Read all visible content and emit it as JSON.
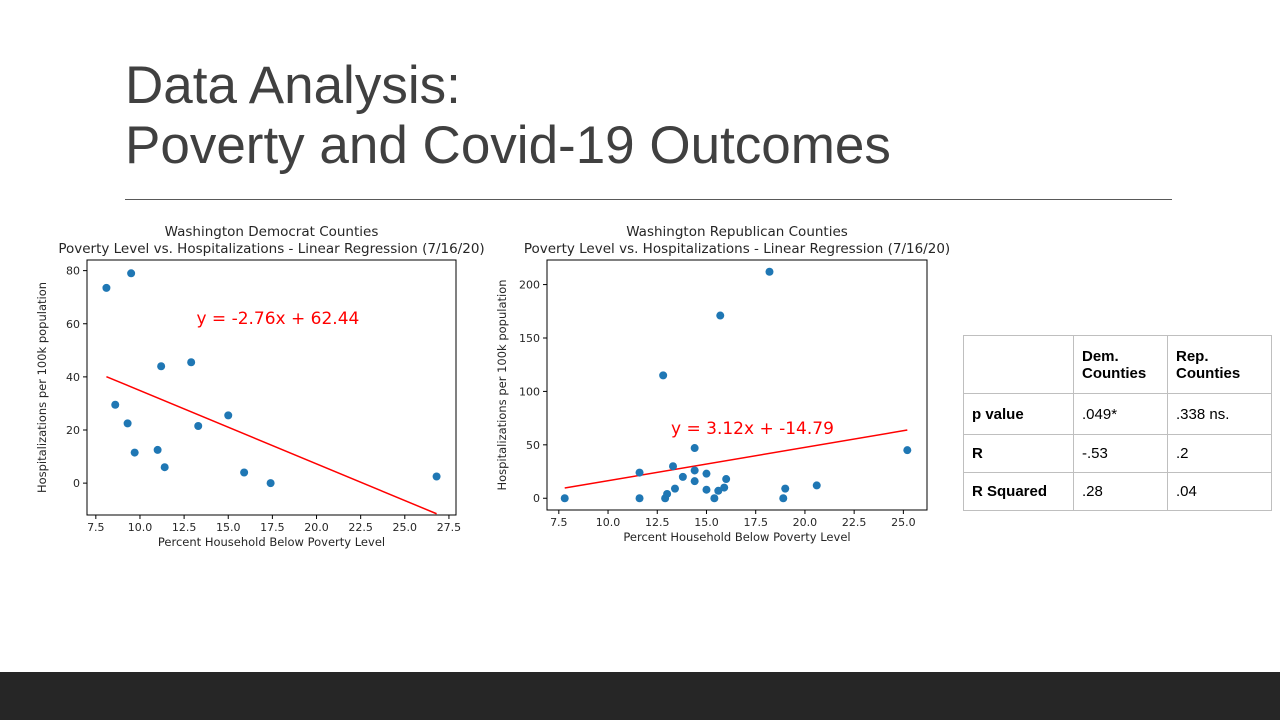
{
  "slide": {
    "title_line1": "Data Analysis:",
    "title_line2": "Poverty and Covid-19 Outcomes"
  },
  "chart_data": [
    {
      "type": "scatter",
      "title": "Washington Democrat Counties",
      "subtitle": "Poverty Level vs. Hospitalizations - Linear Regression (7/16/20)",
      "xlabel": "Percent Household Below Poverty Level",
      "ylabel": "Hospitalizations per 100k population",
      "xlim": [
        7.0,
        27.9
      ],
      "ylim": [
        -12,
        84
      ],
      "xticks": [
        7.5,
        10.0,
        12.5,
        15.0,
        17.5,
        20.0,
        22.5,
        25.0,
        27.5
      ],
      "xtick_labels": [
        "7.5",
        "10.0",
        "12.5",
        "15.0",
        "17.5",
        "20.0",
        "22.5",
        "25.0",
        "27.5"
      ],
      "yticks": [
        0,
        20,
        40,
        60,
        80
      ],
      "ytick_labels": [
        "0",
        "20",
        "40",
        "60",
        "80"
      ],
      "point_color": "#1f77b4",
      "line_color": "#ff0000",
      "points": [
        {
          "x": 8.1,
          "y": 73.5
        },
        {
          "x": 8.6,
          "y": 29.5
        },
        {
          "x": 9.3,
          "y": 22.5
        },
        {
          "x": 9.5,
          "y": 79
        },
        {
          "x": 9.7,
          "y": 11.5
        },
        {
          "x": 11.0,
          "y": 12.5
        },
        {
          "x": 11.2,
          "y": 44
        },
        {
          "x": 11.4,
          "y": 6
        },
        {
          "x": 12.9,
          "y": 45.5
        },
        {
          "x": 13.3,
          "y": 21.5
        },
        {
          "x": 15.0,
          "y": 25.5
        },
        {
          "x": 15.9,
          "y": 4
        },
        {
          "x": 17.4,
          "y": 0
        },
        {
          "x": 26.8,
          "y": 2.5
        }
      ],
      "regression": {
        "slope": -2.76,
        "intercept": 62.44,
        "x_start": 8.1,
        "x_end": 26.8
      },
      "equation": "y = -2.76x + 62.44",
      "equation_pos": {
        "x": 13.2,
        "y": 60
      }
    },
    {
      "type": "scatter",
      "title": "Washington Republican Counties",
      "subtitle": "Poverty Level vs. Hospitalizations - Linear Regression (7/16/20)",
      "xlabel": "Percent Household Below Poverty Level",
      "ylabel": "Hospitalizations per 100k population",
      "xlim": [
        6.9,
        26.2
      ],
      "ylim": [
        -11,
        223
      ],
      "xticks": [
        7.5,
        10.0,
        12.5,
        15.0,
        17.5,
        20.0,
        22.5,
        25.0
      ],
      "xtick_labels": [
        "7.5",
        "10.0",
        "12.5",
        "15.0",
        "17.5",
        "20.0",
        "22.5",
        "25.0"
      ],
      "yticks": [
        0,
        50,
        100,
        150,
        200
      ],
      "ytick_labels": [
        "0",
        "50",
        "100",
        "150",
        "200"
      ],
      "point_color": "#1f77b4",
      "line_color": "#ff0000",
      "points": [
        {
          "x": 7.8,
          "y": 0
        },
        {
          "x": 11.6,
          "y": 0
        },
        {
          "x": 11.6,
          "y": 24
        },
        {
          "x": 12.8,
          "y": 115
        },
        {
          "x": 12.9,
          "y": 0
        },
        {
          "x": 13.0,
          "y": 4
        },
        {
          "x": 13.3,
          "y": 30
        },
        {
          "x": 13.4,
          "y": 9
        },
        {
          "x": 13.8,
          "y": 20
        },
        {
          "x": 14.4,
          "y": 47
        },
        {
          "x": 14.4,
          "y": 26
        },
        {
          "x": 14.4,
          "y": 16
        },
        {
          "x": 15.0,
          "y": 23
        },
        {
          "x": 15.0,
          "y": 8
        },
        {
          "x": 15.4,
          "y": 0
        },
        {
          "x": 15.6,
          "y": 7
        },
        {
          "x": 15.7,
          "y": 171
        },
        {
          "x": 15.9,
          "y": 10
        },
        {
          "x": 16.0,
          "y": 18
        },
        {
          "x": 18.2,
          "y": 212
        },
        {
          "x": 18.9,
          "y": 0
        },
        {
          "x": 19.0,
          "y": 9
        },
        {
          "x": 20.6,
          "y": 12
        },
        {
          "x": 25.2,
          "y": 45
        }
      ],
      "regression": {
        "slope": 3.12,
        "intercept": -14.79,
        "x_start": 7.8,
        "x_end": 25.2
      },
      "equation": "y = 3.12x + -14.79",
      "equation_pos": {
        "x": 13.2,
        "y": 60
      }
    }
  ],
  "stats_table": {
    "header": [
      "",
      "Dem. Counties",
      "Rep. Counties"
    ],
    "rows": [
      [
        "p value",
        ".049*",
        ".338 ns."
      ],
      [
        "R",
        "-.53",
        ".2"
      ],
      [
        "R Squared",
        ".28",
        ".04"
      ]
    ]
  }
}
